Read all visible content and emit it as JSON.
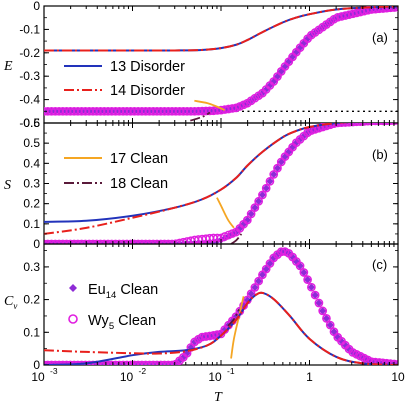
{
  "chart_data": [
    {
      "type": "line",
      "panel_label": "(a)",
      "ylabel": "E",
      "xscale": "log",
      "xlim": [
        0.001,
        10
      ],
      "ylim": [
        -0.5,
        0
      ],
      "yticks": [
        "0",
        "-0.1",
        "-0.2",
        "-0.3",
        "-0.4",
        "-0.5"
      ],
      "legend": [
        {
          "label": "13 Disorder",
          "color": "#2233bb",
          "style": "solid"
        },
        {
          "label": "14 Disorder",
          "color": "#e8201c",
          "style": "dash-dot"
        }
      ],
      "reference_line": {
        "y": -0.45,
        "color": "#000000",
        "style": "dotted"
      },
      "series": [
        {
          "name": "13 Disorder",
          "color": "#2233bb",
          "x": [
            0.001,
            0.01,
            0.03,
            0.06,
            0.1,
            0.15,
            0.2,
            0.3,
            0.5,
            0.7,
            1,
            2,
            5,
            10
          ],
          "y": [
            -0.19,
            -0.19,
            -0.19,
            -0.188,
            -0.18,
            -0.165,
            -0.145,
            -0.11,
            -0.07,
            -0.05,
            -0.035,
            -0.015,
            -0.005,
            -0.002
          ]
        },
        {
          "name": "14 Disorder",
          "color": "#e8201c",
          "x": [
            0.001,
            0.01,
            0.03,
            0.06,
            0.1,
            0.15,
            0.2,
            0.3,
            0.5,
            0.7,
            1,
            2,
            5,
            10
          ],
          "y": [
            -0.19,
            -0.19,
            -0.19,
            -0.188,
            -0.18,
            -0.165,
            -0.145,
            -0.11,
            -0.07,
            -0.05,
            -0.035,
            -0.015,
            -0.005,
            -0.002
          ]
        },
        {
          "name": "17 Clean",
          "color": "#f5a623",
          "x": [
            0.05,
            0.07,
            0.09,
            0.11
          ],
          "y": [
            -0.405,
            -0.415,
            -0.43,
            -0.445
          ]
        },
        {
          "name": "18 Clean",
          "color": "#5a1a3a",
          "x": [
            0.045,
            0.055,
            0.065,
            0.075
          ],
          "y": [
            -0.49,
            -0.48,
            -0.47,
            -0.455
          ]
        },
        {
          "name": "Eu14 Clean",
          "color": "#8e2bd6",
          "x": [
            0.001,
            0.01,
            0.03,
            0.05,
            0.08,
            0.1,
            0.15,
            0.2,
            0.3,
            0.4,
            0.5,
            0.7,
            1,
            2,
            5,
            10
          ],
          "y": [
            -0.45,
            -0.45,
            -0.45,
            -0.45,
            -0.448,
            -0.445,
            -0.435,
            -0.415,
            -0.37,
            -0.32,
            -0.27,
            -0.2,
            -0.13,
            -0.05,
            -0.015,
            -0.005
          ]
        },
        {
          "name": "Wy5 Clean",
          "color": "#e01ee0",
          "x": [
            0.001,
            0.01,
            0.03,
            0.05,
            0.08,
            0.1,
            0.15,
            0.2,
            0.3,
            0.4,
            0.5,
            0.7,
            1,
            2,
            5,
            10
          ],
          "y": [
            -0.45,
            -0.45,
            -0.45,
            -0.45,
            -0.448,
            -0.445,
            -0.435,
            -0.415,
            -0.37,
            -0.32,
            -0.27,
            -0.2,
            -0.13,
            -0.05,
            -0.015,
            -0.005
          ]
        }
      ]
    },
    {
      "type": "line",
      "panel_label": "(b)",
      "ylabel": "S",
      "xscale": "log",
      "xlim": [
        0.001,
        10
      ],
      "ylim": [
        0,
        0.6
      ],
      "yticks": [
        "0",
        "0.1",
        "0.2",
        "0.3",
        "0.4",
        "0.5",
        "0.6"
      ],
      "legend": [
        {
          "label": "17 Clean",
          "color": "#f5a623",
          "style": "solid"
        },
        {
          "label": "18 Clean",
          "color": "#5a1a3a",
          "style": "dash-dot"
        }
      ],
      "series": [
        {
          "name": "13 Disorder",
          "color": "#2233bb",
          "x": [
            0.001,
            0.003,
            0.01,
            0.03,
            0.06,
            0.1,
            0.15,
            0.2,
            0.3,
            0.5,
            0.7,
            1,
            2,
            5,
            10
          ],
          "y": [
            0.11,
            0.115,
            0.14,
            0.18,
            0.22,
            0.27,
            0.33,
            0.39,
            0.46,
            0.53,
            0.56,
            0.58,
            0.6,
            0.61,
            0.612
          ]
        },
        {
          "name": "14 Disorder",
          "color": "#e8201c",
          "x": [
            0.001,
            0.003,
            0.01,
            0.03,
            0.06,
            0.1,
            0.15,
            0.2,
            0.3,
            0.5,
            0.7,
            1,
            2,
            5,
            10
          ],
          "y": [
            0.05,
            0.08,
            0.13,
            0.18,
            0.22,
            0.27,
            0.33,
            0.39,
            0.46,
            0.53,
            0.56,
            0.58,
            0.6,
            0.61,
            0.612
          ]
        },
        {
          "name": "17 Clean",
          "color": "#f5a623",
          "x": [
            0.09,
            0.1,
            0.12,
            0.14
          ],
          "y": [
            0.23,
            0.19,
            0.12,
            0.08
          ]
        },
        {
          "name": "18 Clean",
          "color": "#5a1a3a",
          "x": [
            0.13,
            0.15,
            0.17
          ],
          "y": [
            0.0,
            0.02,
            0.05
          ]
        },
        {
          "name": "Eu14 Clean",
          "color": "#8e2bd6",
          "x": [
            0.001,
            0.01,
            0.03,
            0.05,
            0.08,
            0.1,
            0.15,
            0.2,
            0.3,
            0.4,
            0.5,
            0.7,
            1,
            2,
            5,
            10
          ],
          "y": [
            0.0,
            0.0,
            0.0,
            0.005,
            0.01,
            0.02,
            0.06,
            0.12,
            0.25,
            0.35,
            0.42,
            0.5,
            0.56,
            0.6,
            0.61,
            0.612
          ]
        },
        {
          "name": "Wy5 Clean",
          "color": "#e01ee0",
          "x": [
            0.001,
            0.01,
            0.03,
            0.05,
            0.08,
            0.1,
            0.15,
            0.2,
            0.3,
            0.4,
            0.5,
            0.7,
            1,
            2,
            5,
            10
          ],
          "y": [
            0.0,
            0.0,
            0.0,
            0.02,
            0.03,
            0.03,
            0.06,
            0.12,
            0.25,
            0.35,
            0.42,
            0.5,
            0.56,
            0.6,
            0.61,
            0.612
          ]
        }
      ]
    },
    {
      "type": "line",
      "panel_label": "(c)",
      "ylabel": "Cv",
      "xlabel": "T",
      "xscale": "log",
      "xlim": [
        0.001,
        10
      ],
      "ylim": [
        0,
        0.37
      ],
      "xticks": [
        "10",
        "10",
        "10",
        "1",
        "10"
      ],
      "xtick_exponents": [
        "-3",
        "-2",
        "-1",
        "",
        ""
      ],
      "yticks": [
        "0",
        "0.1",
        "0.2",
        "0.3"
      ],
      "legend": [
        {
          "label": "Eu",
          "sub": "14",
          "suffix": " Clean",
          "color": "#8e2bd6",
          "marker": "diamond"
        },
        {
          "label": "Wy",
          "sub": "5",
          "suffix": " Clean",
          "color": "#e01ee0",
          "marker": "circle"
        }
      ],
      "series": [
        {
          "name": "13 Disorder",
          "color": "#2233bb",
          "x": [
            0.001,
            0.003,
            0.01,
            0.02,
            0.04,
            0.07,
            0.1,
            0.15,
            0.2,
            0.25,
            0.3,
            0.4,
            0.6,
            1,
            2,
            4,
            10
          ],
          "y": [
            0.0,
            0.005,
            0.03,
            0.04,
            0.045,
            0.06,
            0.09,
            0.14,
            0.19,
            0.215,
            0.22,
            0.2,
            0.15,
            0.08,
            0.025,
            0.005,
            0.0
          ]
        },
        {
          "name": "14 Disorder",
          "color": "#e8201c",
          "x": [
            0.001,
            0.003,
            0.01,
            0.02,
            0.04,
            0.07,
            0.1,
            0.15,
            0.2,
            0.25,
            0.3,
            0.4,
            0.6,
            1,
            2,
            4,
            10
          ],
          "y": [
            0.045,
            0.04,
            0.036,
            0.035,
            0.042,
            0.06,
            0.09,
            0.14,
            0.19,
            0.215,
            0.22,
            0.2,
            0.15,
            0.08,
            0.025,
            0.005,
            0.0
          ]
        },
        {
          "name": "17 Clean",
          "color": "#f5a623",
          "x": [
            0.13,
            0.14,
            0.16,
            0.18
          ],
          "y": [
            0.02,
            0.08,
            0.15,
            0.21
          ]
        },
        {
          "name": "18 Clean",
          "color": "#5a1a3a",
          "x": [
            0.12,
            0.14,
            0.16
          ],
          "y": [
            0.12,
            0.14,
            0.17
          ]
        },
        {
          "name": "Eu14 Clean",
          "color": "#8e2bd6",
          "x": [
            0.001,
            0.01,
            0.03,
            0.04,
            0.05,
            0.06,
            0.08,
            0.1,
            0.12,
            0.15,
            0.2,
            0.3,
            0.4,
            0.5,
            0.6,
            0.8,
            1,
            1.5,
            2,
            3,
            5,
            10
          ],
          "y": [
            0.0,
            0.0,
            0.0,
            0.03,
            0.07,
            0.085,
            0.09,
            0.095,
            0.12,
            0.15,
            0.2,
            0.28,
            0.33,
            0.35,
            0.34,
            0.3,
            0.25,
            0.15,
            0.09,
            0.04,
            0.01,
            0.002
          ]
        },
        {
          "name": "Wy5 Clean",
          "color": "#e01ee0",
          "x": [
            0.001,
            0.01,
            0.03,
            0.04,
            0.05,
            0.06,
            0.08,
            0.1,
            0.12,
            0.15,
            0.2,
            0.3,
            0.4,
            0.5,
            0.6,
            0.8,
            1,
            1.5,
            2,
            3,
            5,
            10
          ],
          "y": [
            0.0,
            0.0,
            0.0,
            0.03,
            0.07,
            0.085,
            0.09,
            0.095,
            0.12,
            0.15,
            0.2,
            0.28,
            0.33,
            0.35,
            0.34,
            0.3,
            0.25,
            0.15,
            0.09,
            0.04,
            0.01,
            0.002
          ]
        }
      ]
    }
  ]
}
